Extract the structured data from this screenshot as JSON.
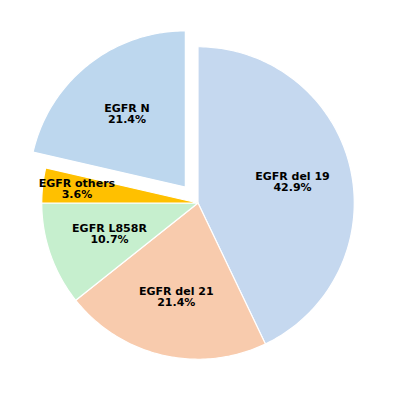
{
  "chart_data": {
    "type": "pie",
    "categories": [
      "EGFR del 19",
      "EGFR del 21",
      "EGFR L858R",
      "EGFR others",
      "EGFR N"
    ],
    "values": [
      42.9,
      21.4,
      10.7,
      3.6,
      21.4
    ],
    "value_labels": [
      "42.9%",
      "21.4%",
      "10.7%",
      "3.6%",
      "21.4%"
    ],
    "colors": [
      "#c5d8ef",
      "#f8cbad",
      "#c6efce",
      "#ffc000",
      "#bdd7ee"
    ],
    "data_labels": true
  }
}
